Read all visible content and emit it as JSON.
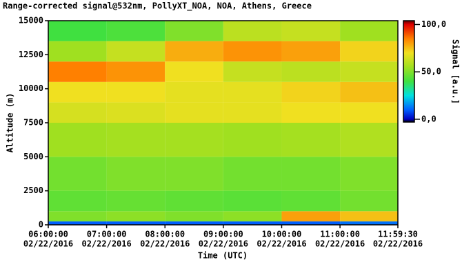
{
  "chart_data": {
    "type": "heatmap",
    "title": "Range-corrected signal@532nm, PollyXT_NOA, NOA, Athens, Greece",
    "ylabel": "Altitude (m)",
    "xlabel": "Time (UTC)",
    "colorbar_label": "Signal [a.u.]",
    "date": "02/22/2016",
    "xlim": [
      "06:00:00",
      "11:59:30"
    ],
    "xticks": [
      "06:00:00",
      "07:00:00",
      "08:00:00",
      "09:00:00",
      "10:00:00",
      "11:00:00",
      "11:59:30"
    ],
    "ylim": [
      0,
      15000
    ],
    "yticks": [
      0,
      2500,
      5000,
      7500,
      10000,
      12500,
      15000
    ],
    "clim": [
      -3,
      104
    ],
    "cticks": [
      {
        "value": 0,
        "label": "0,0"
      },
      {
        "value": 50,
        "label": "50,0"
      },
      {
        "value": 100,
        "label": "100,0"
      }
    ],
    "colormap": [
      {
        "value": -3,
        "color": "#000000"
      },
      {
        "value": 0,
        "color": "#0000c0"
      },
      {
        "value": 10,
        "color": "#0060ff"
      },
      {
        "value": 25,
        "color": "#00e0e0"
      },
      {
        "value": 40,
        "color": "#40e040"
      },
      {
        "value": 55,
        "color": "#a0e020"
      },
      {
        "value": 70,
        "color": "#f0e020"
      },
      {
        "value": 85,
        "color": "#ff8000"
      },
      {
        "value": 100,
        "color": "#e00000"
      },
      {
        "value": 104,
        "color": "#600000"
      }
    ],
    "x_edges": [
      "06:00:00",
      "07:00:00",
      "08:00:00",
      "09:00:00",
      "10:00:00",
      "11:00:00",
      "11:59:30"
    ],
    "y_edges": [
      0,
      250,
      1000,
      2500,
      5000,
      7500,
      9000,
      10500,
      12000,
      13500,
      15000
    ],
    "z": [
      [
        10,
        10,
        10,
        10,
        10,
        12
      ],
      [
        50,
        52,
        50,
        52,
        80,
        75
      ],
      [
        45,
        46,
        45,
        44,
        45,
        48
      ],
      [
        48,
        50,
        50,
        48,
        48,
        50
      ],
      [
        55,
        56,
        56,
        55,
        56,
        58
      ],
      [
        65,
        66,
        68,
        68,
        70,
        70
      ],
      [
        70,
        70,
        68,
        68,
        72,
        75
      ],
      [
        85,
        82,
        70,
        62,
        60,
        62
      ],
      [
        55,
        62,
        78,
        82,
        80,
        72
      ],
      [
        40,
        42,
        50,
        60,
        62,
        55
      ]
    ]
  }
}
